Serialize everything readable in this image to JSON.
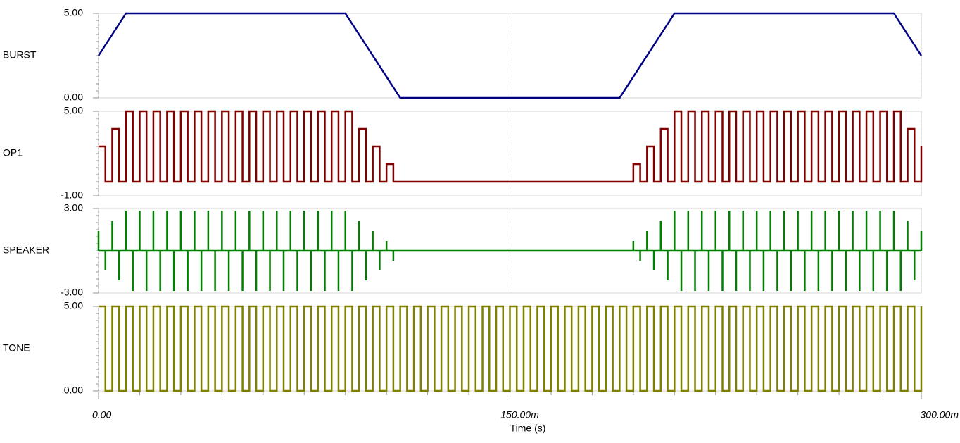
{
  "chart_data": [
    {
      "type": "line",
      "label": "BURST",
      "label_color": "#000000",
      "color": "#000080",
      "x": [
        0,
        0.01,
        0.09,
        0.11,
        0.19,
        0.21,
        0.29,
        0.3
      ],
      "values": [
        2.5,
        5,
        5,
        0,
        0,
        5,
        5,
        2.5
      ],
      "xlim": [
        0,
        0.3
      ],
      "ylim": [
        0,
        5
      ],
      "yticks": [
        {
          "value": 5,
          "label": "5.00"
        },
        {
          "value": 0,
          "label": "0.00"
        }
      ]
    },
    {
      "type": "step",
      "label": "OP1",
      "label_color": "#800000",
      "color": "#800000",
      "x": [
        0,
        0.0025,
        0.005,
        0.0075,
        0.01,
        0.0125,
        0.015,
        0.0175,
        0.02,
        0.0225,
        0.025,
        0.0275,
        0.03,
        0.0325,
        0.035,
        0.0375,
        0.04,
        0.0425,
        0.045,
        0.0475,
        0.05,
        0.0525,
        0.055,
        0.0575,
        0.06,
        0.0625,
        0.065,
        0.0675,
        0.07,
        0.0725,
        0.075,
        0.0775,
        0.08,
        0.0825,
        0.085,
        0.0875,
        0.09,
        0.0925,
        0.095,
        0.0975,
        0.1,
        0.1025,
        0.105,
        0.1075,
        0.11,
        0.1125,
        0.115,
        0.1175,
        0.12,
        0.1225,
        0.125,
        0.1275,
        0.13,
        0.1325,
        0.135,
        0.1375,
        0.14,
        0.1425,
        0.145,
        0.1475,
        0.15,
        0.1525,
        0.155,
        0.1575,
        0.16,
        0.1625,
        0.165,
        0.1675,
        0.17,
        0.1725,
        0.175,
        0.1775,
        0.18,
        0.1825,
        0.185,
        0.1875,
        0.19,
        0.1925,
        0.195,
        0.1975,
        0.2,
        0.2025,
        0.205,
        0.2075,
        0.21,
        0.2125,
        0.215,
        0.2175,
        0.22,
        0.2225,
        0.225,
        0.2275,
        0.23,
        0.2325,
        0.235,
        0.2375,
        0.24,
        0.2425,
        0.245,
        0.2475,
        0.25,
        0.2525,
        0.255,
        0.2575,
        0.26,
        0.2625,
        0.265,
        0.2675,
        0.27,
        0.2725,
        0.275,
        0.2775,
        0.28,
        0.2825,
        0.285,
        0.2875,
        0.29,
        0.2925,
        0.295,
        0.2975,
        0.3
      ],
      "values": [
        2.5,
        0,
        3.75,
        0,
        5,
        0,
        5,
        0,
        5,
        0,
        5,
        0,
        5,
        0,
        5,
        0,
        5,
        0,
        5,
        0,
        5,
        0,
        5,
        0,
        5,
        0,
        5,
        0,
        5,
        0,
        5,
        0,
        5,
        0,
        5,
        0,
        5,
        0,
        3.75,
        0,
        2.5,
        0,
        1.25,
        0,
        0,
        0,
        0,
        0,
        0,
        0,
        0,
        0,
        0,
        0,
        0,
        0,
        0,
        0,
        0,
        0,
        0,
        0,
        0,
        0,
        0,
        0,
        0,
        0,
        0,
        0,
        0,
        0,
        0,
        0,
        0,
        0,
        0,
        0,
        1.25,
        0,
        2.5,
        0,
        3.75,
        0,
        5,
        0,
        5,
        0,
        5,
        0,
        5,
        0,
        5,
        0,
        5,
        0,
        5,
        0,
        5,
        0,
        5,
        0,
        5,
        0,
        5,
        0,
        5,
        0,
        5,
        0,
        5,
        0,
        5,
        0,
        5,
        0,
        5,
        0,
        3.75,
        0,
        2.5
      ],
      "xlim": [
        0,
        0.3
      ],
      "ylim": [
        -1,
        5
      ],
      "yticks": [
        {
          "value": 5,
          "label": "5.00"
        },
        {
          "value": -1,
          "label": "-1.00"
        }
      ]
    },
    {
      "type": "stem",
      "label": "SPEAKER",
      "label_color": "#008000",
      "color": "#008000",
      "x": [
        0,
        0.0025,
        0.005,
        0.0075,
        0.01,
        0.0125,
        0.015,
        0.0175,
        0.02,
        0.0225,
        0.025,
        0.0275,
        0.03,
        0.0325,
        0.035,
        0.0375,
        0.04,
        0.0425,
        0.045,
        0.0475,
        0.05,
        0.0525,
        0.055,
        0.0575,
        0.06,
        0.0625,
        0.065,
        0.0675,
        0.07,
        0.0725,
        0.075,
        0.0775,
        0.08,
        0.0825,
        0.085,
        0.0875,
        0.09,
        0.0925,
        0.095,
        0.0975,
        0.1,
        0.1025,
        0.105,
        0.1075,
        0.11,
        0.1125,
        0.115,
        0.1175,
        0.12,
        0.1225,
        0.125,
        0.1275,
        0.13,
        0.1325,
        0.135,
        0.1375,
        0.14,
        0.1425,
        0.145,
        0.1475,
        0.15,
        0.1525,
        0.155,
        0.1575,
        0.16,
        0.1625,
        0.165,
        0.1675,
        0.17,
        0.1725,
        0.175,
        0.1775,
        0.18,
        0.1825,
        0.185,
        0.1875,
        0.19,
        0.1925,
        0.195,
        0.1975,
        0.2,
        0.2025,
        0.205,
        0.2075,
        0.21,
        0.2125,
        0.215,
        0.2175,
        0.22,
        0.2225,
        0.225,
        0.2275,
        0.23,
        0.2325,
        0.235,
        0.2375,
        0.24,
        0.2425,
        0.245,
        0.2475,
        0.25,
        0.2525,
        0.255,
        0.2575,
        0.26,
        0.2625,
        0.265,
        0.2675,
        0.27,
        0.2725,
        0.275,
        0.2775,
        0.28,
        0.2825,
        0.285,
        0.2875,
        0.29,
        0.2925,
        0.295,
        0.2975,
        0.3
      ],
      "values": [
        1.4,
        -1.4,
        2.1,
        -2.1,
        2.85,
        -2.85,
        2.85,
        -2.85,
        2.85,
        -2.85,
        2.85,
        -2.85,
        2.85,
        -2.85,
        2.85,
        -2.85,
        2.85,
        -2.85,
        2.85,
        -2.85,
        2.85,
        -2.85,
        2.85,
        -2.85,
        2.85,
        -2.85,
        2.85,
        -2.85,
        2.85,
        -2.85,
        2.85,
        -2.85,
        2.85,
        -2.85,
        2.85,
        -2.85,
        2.85,
        -2.85,
        2.1,
        -2.1,
        1.4,
        -1.4,
        0.7,
        -0.7,
        0,
        0,
        0,
        0,
        0,
        0,
        0,
        0,
        0,
        0,
        0,
        0,
        0,
        0,
        0,
        0,
        0,
        0,
        0,
        0,
        0,
        0,
        0,
        0,
        0,
        0,
        0,
        0,
        0,
        0,
        0,
        0,
        0,
        0,
        0.7,
        -0.7,
        1.4,
        -1.4,
        2.1,
        -2.1,
        2.85,
        -2.85,
        2.85,
        -2.85,
        2.85,
        -2.85,
        2.85,
        -2.85,
        2.85,
        -2.85,
        2.85,
        -2.85,
        2.85,
        -2.85,
        2.85,
        -2.85,
        2.85,
        -2.85,
        2.85,
        -2.85,
        2.85,
        -2.85,
        2.85,
        -2.85,
        2.85,
        -2.85,
        2.85,
        -2.85,
        2.85,
        -2.85,
        2.85,
        -2.85,
        2.85,
        -2.85,
        2.1,
        -2.1,
        1.4
      ],
      "xlim": [
        0,
        0.3
      ],
      "ylim": [
        -3,
        3
      ],
      "yticks": [
        {
          "value": 3,
          "label": "3.00"
        },
        {
          "value": -3,
          "label": "-3.00"
        }
      ]
    },
    {
      "type": "step",
      "label": "TONE",
      "label_color": "#808000",
      "color": "#808000",
      "x": [
        0,
        0.0025,
        0.005,
        0.0075,
        0.01,
        0.0125,
        0.015,
        0.0175,
        0.02,
        0.0225,
        0.025,
        0.0275,
        0.03,
        0.0325,
        0.035,
        0.0375,
        0.04,
        0.0425,
        0.045,
        0.0475,
        0.05,
        0.0525,
        0.055,
        0.0575,
        0.06,
        0.0625,
        0.065,
        0.0675,
        0.07,
        0.0725,
        0.075,
        0.0775,
        0.08,
        0.0825,
        0.085,
        0.0875,
        0.09,
        0.0925,
        0.095,
        0.0975,
        0.1,
        0.1025,
        0.105,
        0.1075,
        0.11,
        0.1125,
        0.115,
        0.1175,
        0.12,
        0.1225,
        0.125,
        0.1275,
        0.13,
        0.1325,
        0.135,
        0.1375,
        0.14,
        0.1425,
        0.145,
        0.1475,
        0.15,
        0.1525,
        0.155,
        0.1575,
        0.16,
        0.1625,
        0.165,
        0.1675,
        0.17,
        0.1725,
        0.175,
        0.1775,
        0.18,
        0.1825,
        0.185,
        0.1875,
        0.19,
        0.1925,
        0.195,
        0.1975,
        0.2,
        0.2025,
        0.205,
        0.2075,
        0.21,
        0.2125,
        0.215,
        0.2175,
        0.22,
        0.2225,
        0.225,
        0.2275,
        0.23,
        0.2325,
        0.235,
        0.2375,
        0.24,
        0.2425,
        0.245,
        0.2475,
        0.25,
        0.2525,
        0.255,
        0.2575,
        0.26,
        0.2625,
        0.265,
        0.2675,
        0.27,
        0.2725,
        0.275,
        0.2775,
        0.28,
        0.2825,
        0.285,
        0.2875,
        0.29,
        0.2925,
        0.295,
        0.2975,
        0.3
      ],
      "values": [
        5,
        0,
        5,
        0,
        5,
        0,
        5,
        0,
        5,
        0,
        5,
        0,
        5,
        0,
        5,
        0,
        5,
        0,
        5,
        0,
        5,
        0,
        5,
        0,
        5,
        0,
        5,
        0,
        5,
        0,
        5,
        0,
        5,
        0,
        5,
        0,
        5,
        0,
        5,
        0,
        5,
        0,
        5,
        0,
        5,
        0,
        5,
        0,
        5,
        0,
        5,
        0,
        5,
        0,
        5,
        0,
        5,
        0,
        5,
        0,
        5,
        0,
        5,
        0,
        5,
        0,
        5,
        0,
        5,
        0,
        5,
        0,
        5,
        0,
        5,
        0,
        5,
        0,
        5,
        0,
        5,
        0,
        5,
        0,
        5,
        0,
        5,
        0,
        5,
        0,
        5,
        0,
        5,
        0,
        5,
        0,
        5,
        0,
        5,
        0,
        5,
        0,
        5,
        0,
        5,
        0,
        5,
        0,
        5,
        0,
        5,
        0,
        5,
        0,
        5,
        0,
        5,
        0,
        5,
        0,
        5
      ],
      "xlim": [
        0,
        0.3
      ],
      "ylim": [
        0,
        5
      ],
      "yticks": [
        {
          "value": 5,
          "label": "5.00"
        },
        {
          "value": 0,
          "label": "0.00"
        }
      ],
      "xticks": [
        {
          "value": 0,
          "label": "0.00"
        },
        {
          "value": 0.15,
          "label": "150.00m"
        },
        {
          "value": 0.3,
          "label": "300.00m"
        }
      ],
      "xlabel": "Time (s)"
    }
  ]
}
